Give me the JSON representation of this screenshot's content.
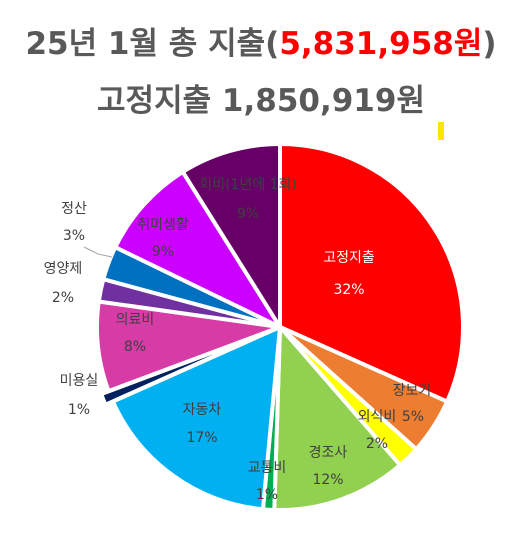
{
  "header": {
    "title_prefix": "25년 1월 총 지출(",
    "title_amount": "5,831,958원",
    "title_suffix": ")",
    "subtitle": "고정지출 1,850,919원"
  },
  "chart_data": {
    "type": "pie",
    "title": "25년 1월 총 지출(5,831,958원)",
    "subtitle": "고정지출 1,850,919원",
    "series": [
      {
        "slices": [
          {
            "label": "고정지출",
            "percent_label": "32%",
            "value": 32,
            "color": "#ff0000",
            "text_color": "#ffffff"
          },
          {
            "label": "장보기",
            "percent_label": "5%",
            "value": 5,
            "color": "#ed7d31",
            "text_color": "#404040"
          },
          {
            "label": "외식비",
            "percent_label": "2%",
            "value": 2,
            "color": "#ffff00",
            "text_color": "#404040"
          },
          {
            "label": "경조사",
            "percent_label": "12%",
            "value": 12,
            "color": "#92d050",
            "text_color": "#404040"
          },
          {
            "label": "교통비",
            "percent_label": "1%",
            "value": 1,
            "color": "#00b050",
            "text_color": "#404040"
          },
          {
            "label": "자동차",
            "percent_label": "17%",
            "value": 17,
            "color": "#00b0f0",
            "text_color": "#404040"
          },
          {
            "label": "미용실",
            "percent_label": "1%",
            "value": 1,
            "color": "#002060",
            "text_color": "#404040"
          },
          {
            "label": "의료비",
            "percent_label": "8%",
            "value": 8,
            "color": "#d63ba6",
            "text_color": "#404040"
          },
          {
            "label": "영양제",
            "percent_label": "2%",
            "value": 2,
            "color": "#7030a0",
            "text_color": "#404040"
          },
          {
            "label": "정산",
            "percent_label": "3%",
            "value": 3,
            "color": "#0070c0",
            "text_color": "#404040"
          },
          {
            "label": "취미생활",
            "percent_label": "9%",
            "value": 9,
            "color": "#cc00ff",
            "text_color": "#404040"
          },
          {
            "label": "회비(1년에 1회)",
            "percent_label": "9%",
            "value": 9,
            "color": "#660066",
            "text_color": "#404040"
          }
        ]
      }
    ]
  }
}
